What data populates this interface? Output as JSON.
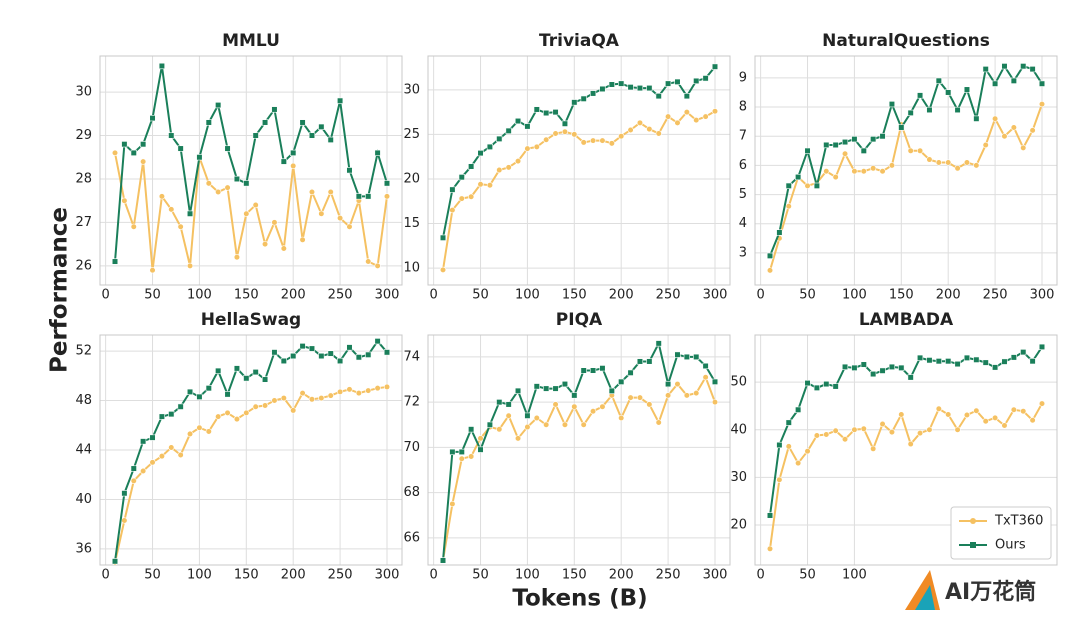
{
  "chart_data": [
    {
      "type": "line",
      "title": "MMLU",
      "x": [
        10,
        20,
        30,
        40,
        50,
        60,
        70,
        80,
        90,
        100,
        110,
        120,
        130,
        140,
        150,
        160,
        170,
        180,
        190,
        200,
        210,
        220,
        230,
        240,
        250,
        260,
        270,
        280,
        290,
        300
      ],
      "series": [
        {
          "name": "TxT360",
          "color": "#f5c162",
          "values": [
            28.6,
            27.5,
            26.9,
            28.4,
            25.9,
            27.6,
            27.3,
            26.9,
            26.0,
            28.5,
            27.9,
            27.7,
            27.8,
            26.2,
            27.2,
            27.4,
            26.5,
            27.0,
            26.4,
            28.3,
            26.6,
            27.7,
            27.2,
            27.7,
            27.1,
            26.9,
            27.5,
            26.1,
            26.0,
            27.6
          ]
        },
        {
          "name": "Ours",
          "color": "#1a7f5a",
          "values": [
            26.1,
            28.8,
            28.6,
            28.8,
            29.4,
            30.6,
            29.0,
            28.7,
            27.2,
            28.5,
            29.3,
            29.7,
            28.7,
            28.0,
            27.9,
            29.0,
            29.3,
            29.6,
            28.4,
            28.6,
            29.3,
            29.0,
            29.2,
            28.9,
            29.8,
            28.2,
            27.6,
            27.6,
            28.6,
            27.9
          ]
        }
      ],
      "xlim": [
        -6,
        316
      ],
      "ylim": [
        25.56,
        30.83
      ],
      "xticks": [
        0,
        50,
        100,
        150,
        200,
        250,
        300
      ],
      "yticks": [
        26,
        27,
        28,
        29,
        30
      ],
      "grid": true
    },
    {
      "type": "line",
      "title": "TriviaQA",
      "x": [
        10,
        20,
        30,
        40,
        50,
        60,
        70,
        80,
        90,
        100,
        110,
        120,
        130,
        140,
        150,
        160,
        170,
        180,
        190,
        200,
        210,
        220,
        230,
        240,
        250,
        260,
        270,
        280,
        290,
        300
      ],
      "series": [
        {
          "name": "TxT360",
          "color": "#f5c162",
          "values": [
            9.8,
            16.5,
            17.8,
            18.0,
            19.4,
            19.3,
            21.0,
            21.3,
            22.0,
            23.4,
            23.6,
            24.4,
            25.1,
            25.3,
            25.0,
            24.1,
            24.3,
            24.3,
            24.0,
            24.8,
            25.5,
            26.3,
            25.6,
            25.1,
            27.0,
            26.3,
            27.5,
            26.6,
            27.0,
            27.6
          ]
        },
        {
          "name": "Ours",
          "color": "#1a7f5a",
          "values": [
            13.4,
            18.8,
            20.2,
            21.4,
            22.9,
            23.6,
            24.5,
            25.4,
            26.5,
            25.9,
            27.8,
            27.4,
            27.5,
            26.2,
            28.6,
            29.0,
            29.6,
            30.1,
            30.6,
            30.7,
            30.3,
            30.2,
            30.2,
            29.3,
            30.7,
            30.9,
            29.3,
            31.0,
            31.3,
            32.6
          ]
        }
      ],
      "xlim": [
        -6,
        316
      ],
      "ylim": [
        8.1,
        33.8
      ],
      "xticks": [
        0,
        50,
        100,
        150,
        200,
        250,
        300
      ],
      "yticks": [
        10,
        15,
        20,
        25,
        30
      ],
      "grid": true
    },
    {
      "type": "line",
      "title": "NaturalQuestions",
      "x": [
        10,
        20,
        30,
        40,
        50,
        60,
        70,
        80,
        90,
        100,
        110,
        120,
        130,
        140,
        150,
        160,
        170,
        180,
        190,
        200,
        210,
        220,
        230,
        240,
        250,
        260,
        270,
        280,
        290,
        300
      ],
      "series": [
        {
          "name": "TxT360",
          "color": "#f5c162",
          "values": [
            2.4,
            3.5,
            4.6,
            5.6,
            5.3,
            5.4,
            5.8,
            5.6,
            6.4,
            5.8,
            5.8,
            5.9,
            5.8,
            6.0,
            7.4,
            6.5,
            6.5,
            6.2,
            6.1,
            6.1,
            5.9,
            6.1,
            6.0,
            6.7,
            7.6,
            7.0,
            7.3,
            6.6,
            7.2,
            8.1
          ]
        },
        {
          "name": "Ours",
          "color": "#1a7f5a",
          "values": [
            2.9,
            3.7,
            5.3,
            5.6,
            6.5,
            5.3,
            6.7,
            6.7,
            6.8,
            6.9,
            6.5,
            6.9,
            7.0,
            8.1,
            7.3,
            7.8,
            8.4,
            7.9,
            8.9,
            8.5,
            7.9,
            8.6,
            7.6,
            9.3,
            8.8,
            9.4,
            8.9,
            9.4,
            9.3,
            8.8
          ]
        }
      ],
      "xlim": [
        -6,
        316
      ],
      "ylim": [
        1.9,
        9.75
      ],
      "xticks": [
        0,
        50,
        100,
        150,
        200,
        250,
        300
      ],
      "yticks": [
        3,
        4,
        5,
        6,
        7,
        8,
        9
      ],
      "grid": true
    },
    {
      "type": "line",
      "title": "HellaSwag",
      "x": [
        10,
        20,
        30,
        40,
        50,
        60,
        70,
        80,
        90,
        100,
        110,
        120,
        130,
        140,
        150,
        160,
        170,
        180,
        190,
        200,
        210,
        220,
        230,
        240,
        250,
        260,
        270,
        280,
        290,
        300
      ],
      "series": [
        {
          "name": "TxT360",
          "color": "#f5c162",
          "values": [
            34.9,
            38.3,
            41.5,
            42.3,
            43.0,
            43.5,
            44.2,
            43.6,
            45.3,
            45.8,
            45.5,
            46.7,
            47.0,
            46.5,
            47.0,
            47.5,
            47.6,
            48.0,
            48.2,
            47.2,
            48.6,
            48.1,
            48.2,
            48.4,
            48.7,
            48.9,
            48.6,
            48.8,
            49.0,
            49.1
          ]
        },
        {
          "name": "Ours",
          "color": "#1a7f5a",
          "values": [
            35.0,
            40.5,
            42.5,
            44.7,
            45.0,
            46.7,
            46.9,
            47.5,
            48.7,
            48.3,
            49.0,
            50.4,
            48.5,
            50.6,
            49.8,
            50.3,
            49.7,
            51.9,
            51.2,
            51.6,
            52.4,
            52.2,
            51.6,
            51.8,
            51.2,
            52.3,
            51.5,
            51.7,
            52.8,
            51.9
          ]
        }
      ],
      "xlim": [
        -6,
        316
      ],
      "ylim": [
        34.7,
        53.3
      ],
      "xticks": [
        0,
        50,
        100,
        150,
        200,
        250,
        300
      ],
      "yticks": [
        36,
        40,
        44,
        48,
        52
      ],
      "grid": true
    },
    {
      "type": "line",
      "title": "PIQA",
      "x": [
        10,
        20,
        30,
        40,
        50,
        60,
        70,
        80,
        90,
        100,
        110,
        120,
        130,
        140,
        150,
        160,
        170,
        180,
        190,
        200,
        210,
        220,
        230,
        240,
        250,
        260,
        270,
        280,
        290,
        300
      ],
      "series": [
        {
          "name": "TxT360",
          "color": "#f5c162",
          "values": [
            65.0,
            67.5,
            69.5,
            69.6,
            70.4,
            70.9,
            70.8,
            71.4,
            70.4,
            70.9,
            71.3,
            71.0,
            71.9,
            71.0,
            71.8,
            71.0,
            71.6,
            71.8,
            72.3,
            71.3,
            72.2,
            72.2,
            71.9,
            71.1,
            72.3,
            72.8,
            72.3,
            72.4,
            73.1,
            72.0
          ]
        },
        {
          "name": "Ours",
          "color": "#1a7f5a",
          "values": [
            65.0,
            69.8,
            69.8,
            70.8,
            69.9,
            71.0,
            72.0,
            71.9,
            72.5,
            71.4,
            72.7,
            72.6,
            72.6,
            72.8,
            72.3,
            73.4,
            73.4,
            73.5,
            72.5,
            72.9,
            73.3,
            73.8,
            73.8,
            74.6,
            72.8,
            74.1,
            74.0,
            74.0,
            73.6,
            72.9
          ]
        }
      ],
      "xlim": [
        -6,
        316
      ],
      "ylim": [
        64.8,
        74.97
      ],
      "xticks": [
        0,
        50,
        100,
        150,
        200,
        250,
        300
      ],
      "yticks": [
        66,
        68,
        70,
        72,
        74
      ],
      "grid": true
    },
    {
      "type": "line",
      "title": "LAMBADA",
      "x": [
        10,
        20,
        30,
        40,
        50,
        60,
        70,
        80,
        90,
        100,
        110,
        120,
        130,
        140,
        150,
        160,
        170,
        180,
        190,
        200,
        210,
        220,
        230,
        240,
        250,
        260,
        270,
        280,
        290,
        300
      ],
      "series": [
        {
          "name": "TxT360",
          "color": "#f5c162",
          "values": [
            15.0,
            29.5,
            36.5,
            33.0,
            35.5,
            38.8,
            39.0,
            39.8,
            38.0,
            40.0,
            40.2,
            36.0,
            41.2,
            39.5,
            43.2,
            37.0,
            39.3,
            40.0,
            44.4,
            43.2,
            40.0,
            43.1,
            44.0,
            41.8,
            42.5,
            40.9,
            44.2,
            43.9,
            42.0,
            45.5
          ]
        },
        {
          "name": "Ours",
          "color": "#1a7f5a",
          "values": [
            22.0,
            36.8,
            41.5,
            44.2,
            49.8,
            48.8,
            49.6,
            49.1,
            53.2,
            53.0,
            53.7,
            51.7,
            52.4,
            53.2,
            53.0,
            51.0,
            55.1,
            54.6,
            54.4,
            54.4,
            53.8,
            55.1,
            54.7,
            54.1,
            53.1,
            54.3,
            55.2,
            56.3,
            54.4,
            57.4
          ]
        }
      ],
      "xlim": [
        -6,
        316
      ],
      "ylim": [
        11.6,
        59.9
      ],
      "xticks": [
        0,
        50,
        100
      ],
      "yticks": [
        20,
        30,
        40,
        50
      ],
      "grid": true,
      "legend": "lower right"
    }
  ],
  "xlabel": "Tokens (B)",
  "ylabel": "Performance",
  "watermark": "AI万花筒"
}
